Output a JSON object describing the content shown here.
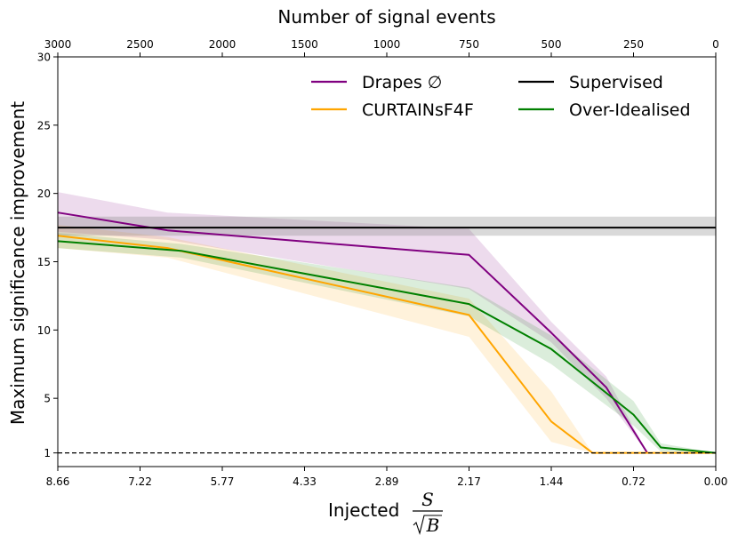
{
  "chart_data": {
    "type": "line",
    "title": "",
    "top_axis_label": "Number of signal events",
    "ylabel": "Maximum significance improvement",
    "xlabel_text": "Injected",
    "xlabel_frac_num": "S",
    "xlabel_frac_den": "B",
    "x_positions": [
      3000,
      2500,
      2000,
      1500,
      1000,
      750,
      500,
      250,
      0
    ],
    "x_tick_labels": [
      "8.66",
      "7.22",
      "5.77",
      "4.33",
      "2.89",
      "2.17",
      "1.44",
      "0.72",
      "0.00"
    ],
    "x_top_tick_values": [
      3000,
      2500,
      2000,
      1500,
      1000,
      750,
      500,
      250,
      0
    ],
    "x_top_tick_labels": [
      "3000",
      "2500",
      "2000",
      "1500",
      "1000",
      "750",
      "500",
      "250",
      "0"
    ],
    "x_range": [
      3000,
      0
    ],
    "ylim": [
      0,
      30
    ],
    "y_ticks": [
      1,
      5,
      10,
      15,
      20,
      25,
      30
    ],
    "y_tick_labels": [
      "1",
      "5",
      "10",
      "15",
      "20",
      "25",
      "30"
    ],
    "reference_line": {
      "y": 1,
      "style": "dashed",
      "color": "#000000"
    },
    "series": [
      {
        "name": "Drapes ∅",
        "color": "#800080",
        "x": [
          3000,
          2333,
          750,
          500,
          333,
          208
        ],
        "y": [
          18.6,
          17.3,
          15.5,
          9.8,
          5.8,
          1.0
        ],
        "lower": [
          17.2,
          16.6,
          13.0,
          9.1,
          5.0,
          1.0
        ],
        "upper": [
          20.1,
          18.6,
          17.4,
          10.6,
          6.6,
          1.0
        ]
      },
      {
        "name": "CURTAINsF4F",
        "color": "#ffa500",
        "x": [
          3000,
          2333,
          750,
          500,
          375,
          250,
          125,
          0
        ],
        "y": [
          16.9,
          16.0,
          11.1,
          3.3,
          1.0,
          1.0,
          1.0,
          1.0
        ],
        "lower": [
          16.0,
          15.3,
          9.5,
          1.8,
          1.0,
          1.0,
          1.0,
          1.0
        ],
        "upper": [
          17.7,
          16.8,
          12.3,
          5.5,
          1.0,
          1.0,
          1.0,
          1.0
        ]
      },
      {
        "name": "Supervised",
        "color": "#000000",
        "x": [
          3000,
          0
        ],
        "y": [
          17.5,
          17.5
        ],
        "lower": [
          16.9,
          16.9
        ],
        "upper": [
          18.3,
          18.3
        ]
      },
      {
        "name": "Over-Idealised",
        "color": "#008000",
        "x": [
          3000,
          2250,
          750,
          500,
          250,
          167,
          0
        ],
        "y": [
          16.5,
          15.8,
          11.9,
          8.6,
          3.8,
          1.4,
          1.0
        ],
        "lower": [
          16.0,
          15.3,
          11.0,
          7.5,
          3.0,
          1.1,
          1.0
        ],
        "upper": [
          17.1,
          16.3,
          13.1,
          9.6,
          4.8,
          1.7,
          1.0
        ]
      }
    ],
    "legend": {
      "placement": "top-right",
      "columns": 2
    }
  }
}
